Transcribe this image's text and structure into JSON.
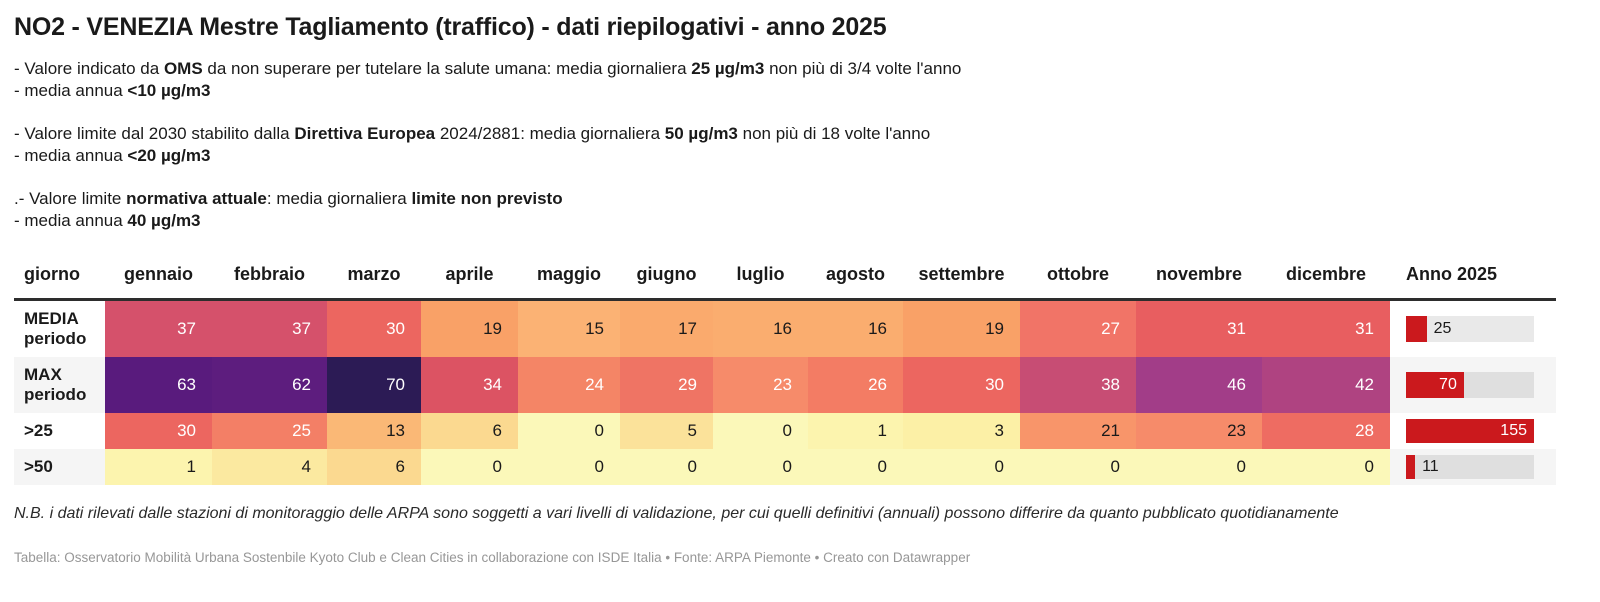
{
  "title": "NO2 - VENEZIA Mestre Tagliamento (traffico) - dati riepilogativi - anno 2025",
  "notes": [
    {
      "lines": [
        {
          "segments": [
            {
              "text": "- Valore indicato da "
            },
            {
              "text": "OMS",
              "bold": true
            },
            {
              "text": " da non superare per tutelare la salute umana: media giornaliera "
            },
            {
              "text": "25 µg/m3",
              "bold": true
            },
            {
              "text": " non più di 3/4 volte l'anno"
            }
          ]
        },
        {
          "segments": [
            {
              "text": "- media annua "
            },
            {
              "text": "<10 µg/m3",
              "bold": true
            }
          ]
        }
      ]
    },
    {
      "lines": [
        {
          "segments": [
            {
              "text": "- Valore limite dal 2030 stabilito dalla "
            },
            {
              "text": "Direttiva Europea",
              "bold": true
            },
            {
              "text": " 2024/2881: media giornaliera "
            },
            {
              "text": "50 µg/m3",
              "bold": true
            },
            {
              "text": " non più di 18 volte l'anno"
            }
          ]
        },
        {
          "segments": [
            {
              "text": "- media annua "
            },
            {
              "text": "<20 µg/m3",
              "bold": true
            }
          ]
        }
      ]
    },
    {
      "lines": [
        {
          "segments": [
            {
              "text": ".- Valore limite "
            },
            {
              "text": "normativa attuale",
              "bold": true
            },
            {
              "text": ": media giornaliera "
            },
            {
              "text": "limite non previsto",
              "bold": true
            }
          ]
        },
        {
          "segments": [
            {
              "text": "- media annua "
            },
            {
              "text": "40 µg/m3",
              "bold": true
            }
          ]
        }
      ]
    }
  ],
  "table": {
    "row_header_label": "giorno",
    "anno_header": "Anno 2025",
    "row_styles": [
      {
        "colors": [
          "#d5516b",
          "#d5516b",
          "#ec6660",
          "#f9a167",
          "#fbb274",
          "#faaa6d",
          "#faad6f",
          "#faad6f",
          "#f9a167",
          "#f17467",
          "#e85e60",
          "#e85e60"
        ],
        "text": [
          "w",
          "w",
          "w",
          "d",
          "d",
          "d",
          "d",
          "d",
          "d",
          "w",
          "w",
          "w"
        ]
      },
      {
        "colors": [
          "#591b7d",
          "#5d1d7e",
          "#2c1b55",
          "#dc5363",
          "#f48566",
          "#ef7464",
          "#f68b6a",
          "#f37c64",
          "#ec6660",
          "#c74d74",
          "#a23d88",
          "#af4381"
        ],
        "text": [
          "w",
          "w",
          "w",
          "w",
          "w",
          "w",
          "w",
          "w",
          "w",
          "w",
          "w",
          "w"
        ]
      },
      {
        "colors": [
          "#ec6660",
          "#f37f66",
          "#fab876",
          "#fbd990",
          "#fbf8b9",
          "#fbe29a",
          "#fbf8b9",
          "#fcf4ae",
          "#fcf0a6",
          "#f8956a",
          "#f68b6a",
          "#ee6c62"
        ],
        "text": [
          "w",
          "w",
          "d",
          "d",
          "d",
          "d",
          "d",
          "d",
          "d",
          "d",
          "d",
          "w"
        ]
      },
      {
        "colors": [
          "#fcf4ae",
          "#fbe9a0",
          "#fbd990",
          "#fbf8b9",
          "#fbf8b9",
          "#fbf8b9",
          "#fbf8b9",
          "#fbf8b9",
          "#fbf8b9",
          "#fbf8b9",
          "#fbf8b9",
          "#fbf8b9"
        ],
        "text": [
          "d",
          "d",
          "d",
          "d",
          "d",
          "d",
          "d",
          "d",
          "d",
          "d",
          "d",
          "d"
        ]
      }
    ]
  },
  "chart_data": {
    "type": "table",
    "title": "NO2 - VENEZIA Mestre Tagliamento (traffico) - dati riepilogativi - anno 2025",
    "categories": [
      "gennaio",
      "febbraio",
      "marzo",
      "aprile",
      "maggio",
      "giugno",
      "luglio",
      "agosto",
      "settembre",
      "ottobre",
      "novembre",
      "dicembre"
    ],
    "series": [
      {
        "name": "MEDIA periodo",
        "values": [
          37,
          37,
          30,
          19,
          15,
          17,
          16,
          16,
          19,
          27,
          31,
          31
        ],
        "anno_2025": 25
      },
      {
        "name": "MAX periodo",
        "values": [
          63,
          62,
          70,
          34,
          24,
          29,
          23,
          26,
          30,
          38,
          46,
          42
        ],
        "anno_2025": 70
      },
      {
        "name": ">25",
        "values": [
          30,
          25,
          13,
          6,
          0,
          5,
          0,
          1,
          3,
          21,
          23,
          28
        ],
        "anno_2025": 155
      },
      {
        "name": ">50",
        "values": [
          1,
          4,
          6,
          0,
          0,
          0,
          0,
          0,
          0,
          0,
          0,
          0
        ],
        "anno_2025": 11
      }
    ],
    "anno_bar_scale_max": 155,
    "legend_position": "none",
    "grid": false
  },
  "colors": {
    "bar_red": "#cb191d",
    "cell_text_light": "#ffffff",
    "cell_text_dark": "#1a1a1a",
    "header_rule": "#2d2d2d",
    "row_stripe": "#f5f5f5"
  },
  "validation_note": "N.B. i dati rilevati dalle stazioni di monitoraggio delle ARPA sono soggetti a vari livelli di validazione, per cui quelli definitivi (annuali) possono differire da quanto pubblicato quotidianamente",
  "credits": "Tabella: Osservatorio Mobilità Urbana Sostenbile Kyoto Club e Clean Cities in collaborazione con ISDE Italia • Fonte: ARPA Piemonte • Creato con Datawrapper"
}
